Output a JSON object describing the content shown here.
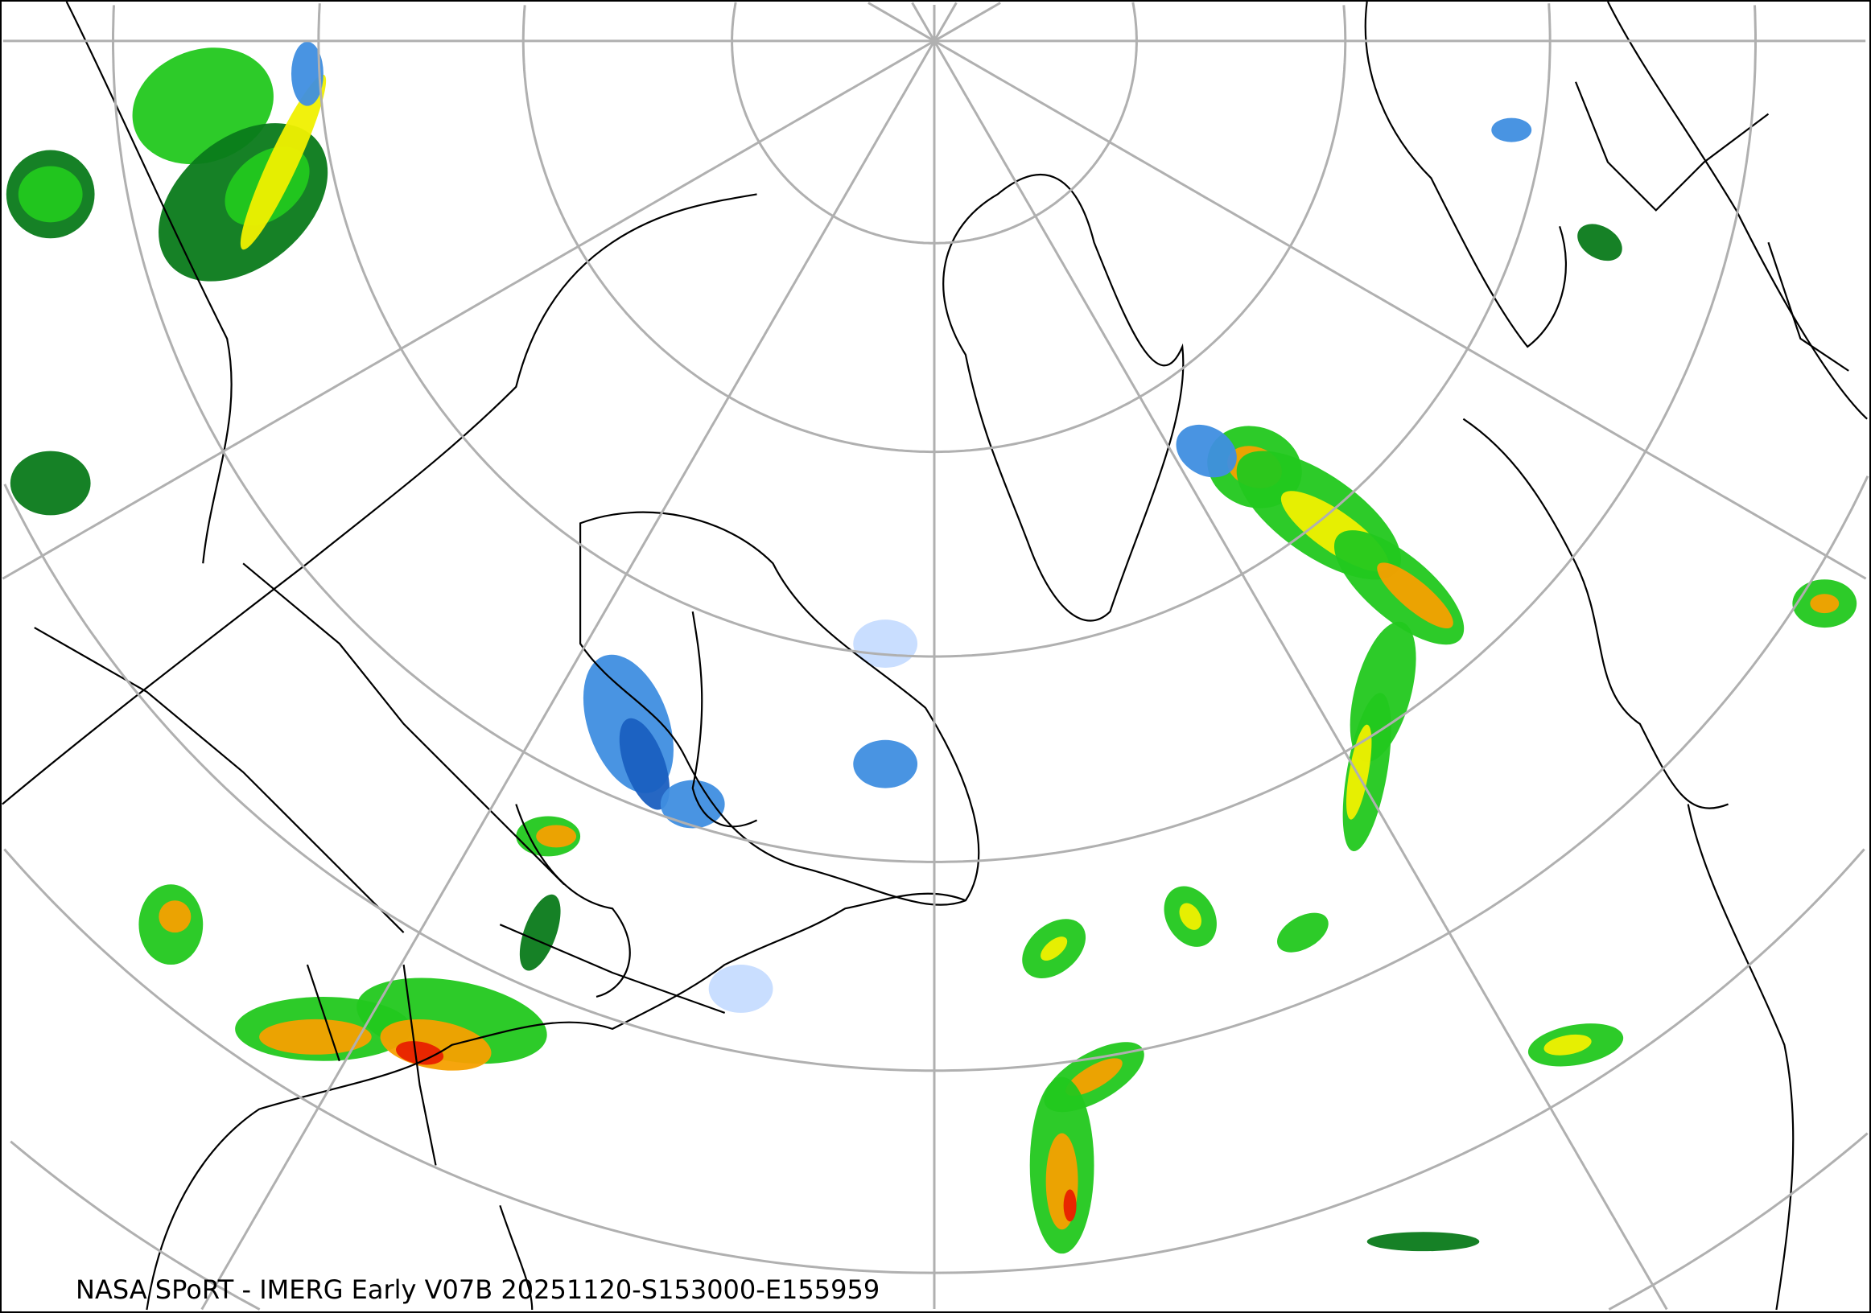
{
  "caption": "NASA SPoRT - IMERG Early V07B 20251120-S153000-E155959",
  "map": {
    "projection": "north-polar-stereographic",
    "graticule_color": "#b0b0b0",
    "border_color": "#000000",
    "precip_colors": {
      "light_blue": "#c6dcff",
      "blue": "#3f8ee0",
      "dark_blue": "#1a5fc0",
      "dark_green": "#0a7a1a",
      "green": "#22c81e",
      "light_green": "#7cf060",
      "yellow": "#f0f000",
      "orange": "#f5a000",
      "red": "#e82000",
      "magenta": "#e040e0"
    }
  }
}
